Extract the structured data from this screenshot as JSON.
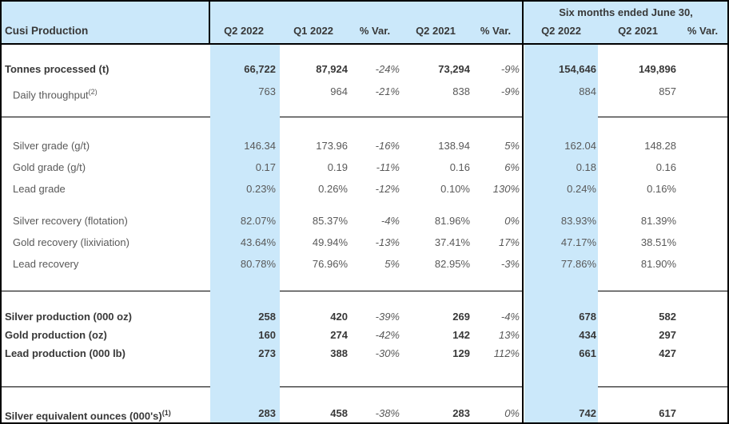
{
  "table": {
    "title": "Cusi Production",
    "six_months_header": "Six months ended June 30,",
    "columns": [
      "Q2 2022",
      "Q1 2022",
      "% Var.",
      "Q2 2021",
      "% Var.",
      "Q2 2022",
      "Q2 2021",
      "% Var."
    ],
    "column_keys": [
      "q2-2022",
      "q1-2022",
      "pct-var-vs-q1",
      "q2-2021",
      "pct-var-vs-q2-2021",
      "six-mo-q2-2022",
      "six-mo-q2-2021",
      "six-mo-pct-var"
    ],
    "rows": [
      {
        "label": "Tonnes processed (t)",
        "sup": "",
        "emphasis": true,
        "indent": false,
        "values": [
          "66,722",
          "87,924",
          "-24%",
          "73,294",
          "-9%",
          "154,646",
          "149,896",
          ""
        ]
      },
      {
        "label": "Daily throughput",
        "sup": "(2)",
        "emphasis": false,
        "indent": true,
        "values": [
          "763",
          "964",
          "-21%",
          "838",
          "-9%",
          "884",
          "857",
          ""
        ]
      },
      {
        "label": "Silver grade (g/t)",
        "sup": "",
        "emphasis": false,
        "indent": true,
        "values": [
          "146.34",
          "173.96",
          "-16%",
          "138.94",
          "5%",
          "162.04",
          "148.28",
          ""
        ]
      },
      {
        "label": "Gold grade (g/t)",
        "sup": "",
        "emphasis": false,
        "indent": true,
        "values": [
          "0.17",
          "0.19",
          "-11%",
          "0.16",
          "6%",
          "0.18",
          "0.16",
          ""
        ]
      },
      {
        "label": "Lead grade",
        "sup": "",
        "emphasis": false,
        "indent": true,
        "values": [
          "0.23%",
          "0.26%",
          "-12%",
          "0.10%",
          "130%",
          "0.24%",
          "0.16%",
          ""
        ]
      },
      {
        "label": "Silver recovery (flotation)",
        "sup": "",
        "emphasis": false,
        "indent": true,
        "values": [
          "82.07%",
          "85.37%",
          "-4%",
          "81.96%",
          "0%",
          "83.93%",
          "81.39%",
          ""
        ]
      },
      {
        "label": "Gold recovery (lixiviation)",
        "sup": "",
        "emphasis": false,
        "indent": true,
        "values": [
          "43.64%",
          "49.94%",
          "-13%",
          "37.41%",
          "17%",
          "47.17%",
          "38.51%",
          ""
        ]
      },
      {
        "label": "Lead recovery",
        "sup": "",
        "emphasis": false,
        "indent": true,
        "values": [
          "80.78%",
          "76.96%",
          "5%",
          "82.95%",
          "-3%",
          "77.86%",
          "81.90%",
          ""
        ]
      },
      {
        "label": "Silver production (000 oz)",
        "sup": "",
        "emphasis": true,
        "indent": false,
        "values": [
          "258",
          "420",
          "-39%",
          "269",
          "-4%",
          "678",
          "582",
          ""
        ]
      },
      {
        "label": "Gold production (oz)",
        "sup": "",
        "emphasis": true,
        "indent": false,
        "values": [
          "160",
          "274",
          "-42%",
          "142",
          "13%",
          "434",
          "297",
          ""
        ]
      },
      {
        "label": "Lead production (000 lb)",
        "sup": "",
        "emphasis": true,
        "indent": false,
        "values": [
          "273",
          "388",
          "-30%",
          "129",
          "112%",
          "661",
          "427",
          ""
        ]
      },
      {
        "label": "Silver equivalent ounces (000's)",
        "sup": "(1)",
        "emphasis": true,
        "indent": false,
        "values": [
          "283",
          "458",
          "-38%",
          "283",
          "0%",
          "742",
          "617",
          ""
        ]
      }
    ]
  },
  "colors": {
    "highlight_blue": "#cbe8fa",
    "border_black": "#000000",
    "text_dark": "#383838",
    "text_gray": "#595959"
  }
}
